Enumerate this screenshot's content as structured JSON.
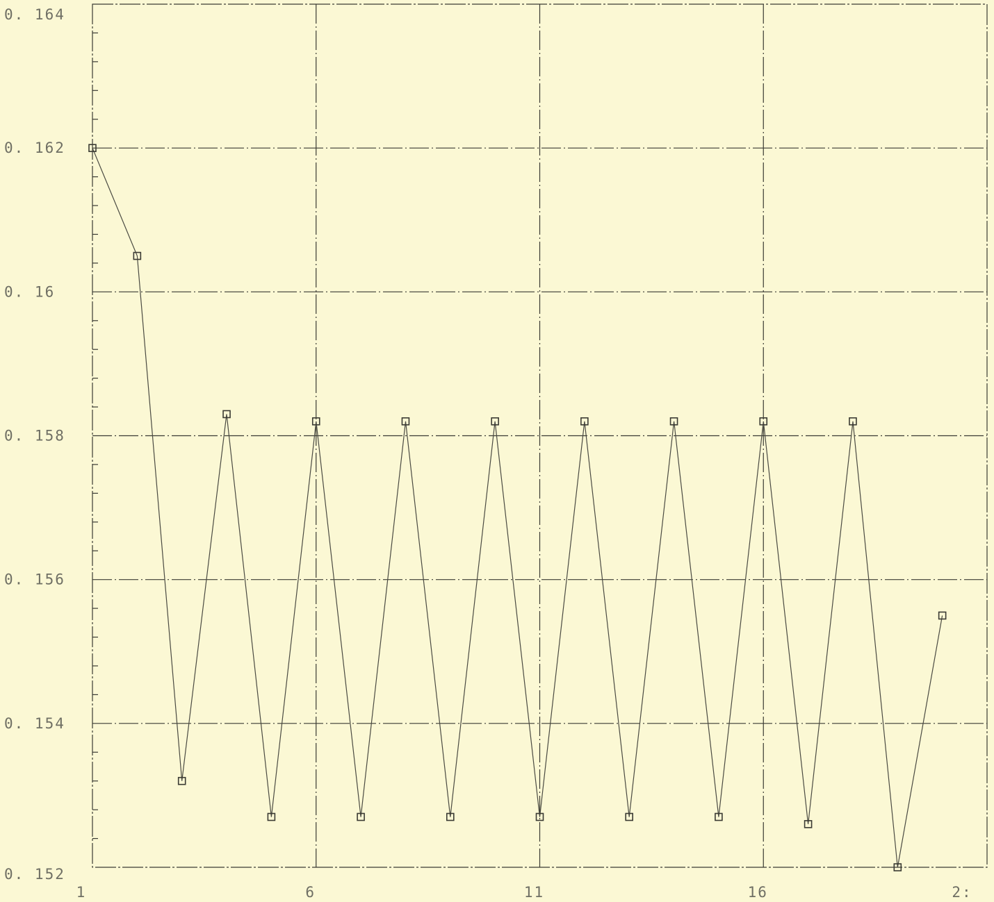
{
  "chart_data": {
    "type": "line",
    "title": "",
    "xlabel": "",
    "ylabel": "",
    "x_tick_labels": [
      "1",
      "6",
      "11",
      "16",
      "2:"
    ],
    "x_ticks": [
      1,
      6,
      11,
      16,
      21
    ],
    "y_tick_labels": [
      "0. 152",
      "0. 154",
      "0. 156",
      "0. 158",
      "0. 16",
      "0. 162",
      "0. 164"
    ],
    "y_ticks": [
      0.152,
      0.154,
      0.156,
      0.158,
      0.16,
      0.162,
      0.164
    ],
    "xlim": [
      1,
      21
    ],
    "ylim": [
      0.152,
      0.164
    ],
    "grid": true,
    "marker": "square",
    "series": [
      {
        "x": [
          1,
          2,
          3,
          4,
          5,
          6,
          7,
          8,
          9,
          10,
          11,
          12,
          13,
          14,
          15,
          16,
          17,
          18,
          19,
          20
        ],
        "values": [
          0.162,
          0.1605,
          0.1532,
          0.1583,
          0.1527,
          0.1582,
          0.1527,
          0.1582,
          0.1527,
          0.1582,
          0.1527,
          0.1582,
          0.1527,
          0.1582,
          0.1527,
          0.1582,
          0.1526,
          0.1582,
          0.152,
          0.1555
        ]
      }
    ]
  }
}
